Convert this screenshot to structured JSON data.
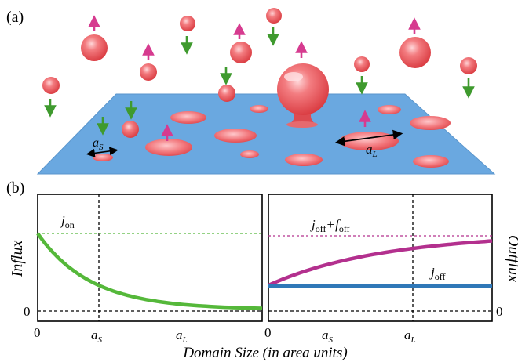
{
  "panel_a": {
    "label": "(a)",
    "small_domain_label": "a",
    "small_domain_sub": "S",
    "large_domain_label": "a",
    "large_domain_sub": "L"
  },
  "panel_b": {
    "label": "(b)",
    "left_ylabel": "Influx",
    "right_ylabel": "Outflux",
    "xlabel": "Domain Size (in area units)",
    "left_zero": "0",
    "right_zero": "0",
    "x_tick_zero_left": "0",
    "x_tick_zero_right": "0",
    "x_tick_as": "a",
    "x_tick_as_sub": "S",
    "x_tick_al": "a",
    "x_tick_al_sub": "L",
    "j_on": "j",
    "j_on_sub": "on",
    "j_off": "j",
    "j_off_sub": "off",
    "j_off_plus_f": "j",
    "j_off_plus_f_sub1": "off",
    "plus": "+",
    "f_off": "f",
    "f_off_sub": "off"
  },
  "colors": {
    "membrane": "#6aa8e0",
    "droplet": "#ee5a5f",
    "droplet_light": "#ffb0b3",
    "arrow_up": "#d63b8f",
    "arrow_down": "#3f9a2e",
    "influx_curve": "#55b83a",
    "outflux_total": "#b3308e",
    "outflux_base": "#2f78b8"
  }
}
